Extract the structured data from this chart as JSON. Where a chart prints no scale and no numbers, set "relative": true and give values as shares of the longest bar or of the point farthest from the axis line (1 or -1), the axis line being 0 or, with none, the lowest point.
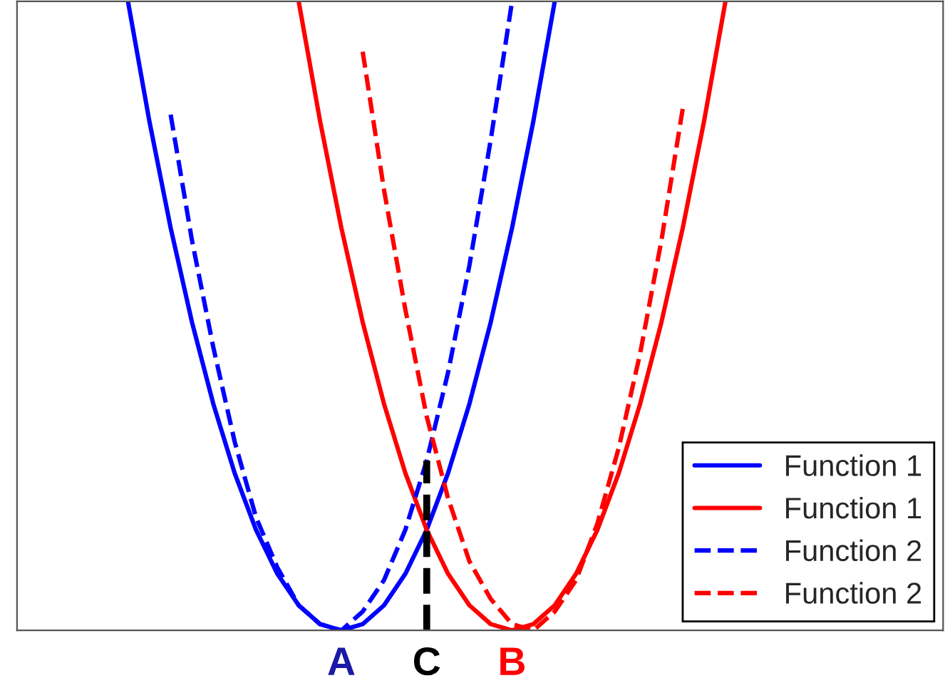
{
  "chart_data": {
    "type": "line",
    "relative": true,
    "categories": [
      null,
      null,
      null,
      null,
      null,
      null,
      null,
      null,
      null,
      null,
      null,
      null,
      null,
      null,
      null,
      null,
      null,
      null,
      null,
      null,
      null,
      null,
      null,
      null,
      null,
      null,
      null,
      null,
      null,
      null,
      null,
      null,
      null,
      null,
      null,
      null,
      null,
      null,
      null,
      null,
      null,
      null,
      null,
      null
    ],
    "series": [
      {
        "name": "Function 1",
        "color": "#0000ff",
        "line_style": "solid",
        "values": [
          null,
          null,
          null,
          null,
          null,
          1.0,
          0.81,
          0.64,
          0.49,
          0.36,
          0.25,
          0.16,
          0.09,
          0.04,
          0.01,
          0.0,
          0.01,
          0.04,
          0.09,
          0.16,
          0.25,
          0.36,
          0.49,
          0.64,
          0.81,
          1.0,
          null,
          null,
          null,
          null,
          null,
          null,
          null,
          null,
          null,
          null,
          null,
          null,
          null,
          null,
          null,
          null,
          null,
          null
        ]
      },
      {
        "name": "Function 1",
        "color": "#ff0000",
        "line_style": "solid",
        "values": [
          null,
          null,
          null,
          null,
          null,
          null,
          null,
          null,
          null,
          null,
          null,
          null,
          null,
          1.0,
          0.81,
          0.64,
          0.49,
          0.36,
          0.25,
          0.16,
          0.09,
          0.04,
          0.01,
          0.0,
          0.01,
          0.04,
          0.09,
          0.16,
          0.25,
          0.36,
          0.49,
          0.64,
          0.81,
          1.0,
          null,
          null,
          null,
          null,
          null,
          null,
          null,
          null,
          null,
          null
        ]
      },
      {
        "name": "Function 2",
        "color": "#0000ff",
        "line_style": "dashed",
        "values": [
          null,
          null,
          null,
          null,
          null,
          null,
          null,
          0.82,
          0.62,
          0.45,
          0.3,
          0.18,
          0.1,
          0.04,
          0.01,
          0.0,
          0.03,
          0.08,
          0.16,
          0.27,
          0.41,
          0.58,
          0.78,
          1.0,
          null,
          null,
          null,
          null,
          null,
          null,
          null,
          null,
          null,
          null,
          null,
          null,
          null,
          null,
          null,
          null,
          null,
          null,
          null,
          null
        ]
      },
      {
        "name": "Function 2",
        "color": "#ff0000",
        "line_style": "dashed",
        "values": [
          null,
          null,
          null,
          null,
          null,
          null,
          null,
          null,
          null,
          null,
          null,
          null,
          null,
          null,
          null,
          null,
          0.92,
          0.7,
          0.51,
          0.34,
          0.21,
          0.11,
          0.05,
          0.01,
          0.0,
          0.03,
          0.08,
          0.17,
          0.29,
          0.44,
          0.62,
          0.83,
          null,
          null,
          null,
          null,
          null,
          null,
          null,
          null,
          null,
          null,
          null,
          null
        ]
      }
    ],
    "annotations": [
      "A",
      "C",
      "B"
    ],
    "legend": "bottom right",
    "grid": false
  }
}
